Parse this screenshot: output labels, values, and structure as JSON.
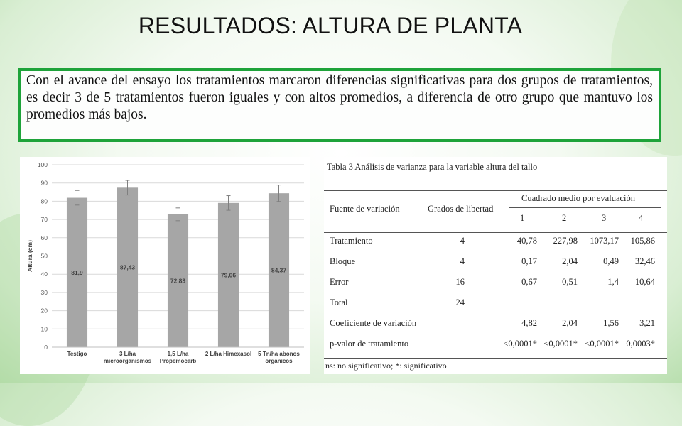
{
  "title": "RESULTADOS: ALTURA DE PLANTA",
  "paragraph": "Con el avance del ensayo los tratamientos marcaron diferencias significativas para dos grupos de tratamientos, es decir 3 de 5 tratamientos fueron iguales y con altos promedios, a diferencia de otro grupo que mantuvo los promedios más bajos.",
  "chart_data": {
    "type": "bar",
    "categories": [
      "Testigo",
      "3 L/ha microorganismos",
      "1,5 L/ha Propemocarb",
      "2 L/ha Himexasol",
      "5 Tn/ha abonos orgánicos"
    ],
    "category_lines": [
      [
        "Testigo"
      ],
      [
        "3 L/ha",
        "microorganismos"
      ],
      [
        "1,5 L/ha",
        "Propemocarb"
      ],
      [
        "2 L/ha  Himexasol"
      ],
      [
        "5 Tn/ha abonos",
        "orgánicos"
      ]
    ],
    "values": [
      81.9,
      87.43,
      72.83,
      79.06,
      84.37
    ],
    "value_labels": [
      "81,9",
      "87,43",
      "72,83",
      "79,06",
      "84,37"
    ],
    "error": [
      4,
      4,
      3.5,
      4,
      4.5
    ],
    "ylabel": "Altura (cm)",
    "ylim": [
      0,
      100
    ],
    "yticks": [
      0,
      10,
      20,
      30,
      40,
      50,
      60,
      70,
      80,
      90,
      100
    ],
    "bar_color": "#a6a6a6",
    "grid": true
  },
  "table": {
    "caption": "Tabla 3 Análisis de varianza para la variable altura del tallo",
    "header_fuente": "Fuente de variación",
    "header_grados": "Grados de libertad",
    "header_cuadrado": "Cuadrado medio por evaluación",
    "eval_cols": [
      "1",
      "2",
      "3",
      "4"
    ],
    "rows": [
      {
        "fuente": "Tratamiento",
        "gl": "4",
        "v": [
          "40,78",
          "227,98",
          "1073,17",
          "105,86"
        ]
      },
      {
        "fuente": "Bloque",
        "gl": "4",
        "v": [
          "0,17",
          "2,04",
          "0,49",
          "32,46"
        ]
      },
      {
        "fuente": "Error",
        "gl": "16",
        "v": [
          "0,67",
          "0,51",
          "1,4",
          "10,64"
        ]
      },
      {
        "fuente": "Total",
        "gl": "24",
        "v": [
          "",
          "",
          "",
          ""
        ]
      },
      {
        "fuente": "Coeficiente de variación",
        "gl": "",
        "v": [
          "4,82",
          "2,04",
          "1,56",
          "3,21"
        ]
      },
      {
        "fuente": "p-valor de tratamiento",
        "gl": "",
        "v": [
          "<0,0001*",
          "<0,0001*",
          "<0,0001*",
          "0,0003*"
        ]
      }
    ],
    "footnote": "ns: no significativo; *: significativo"
  }
}
